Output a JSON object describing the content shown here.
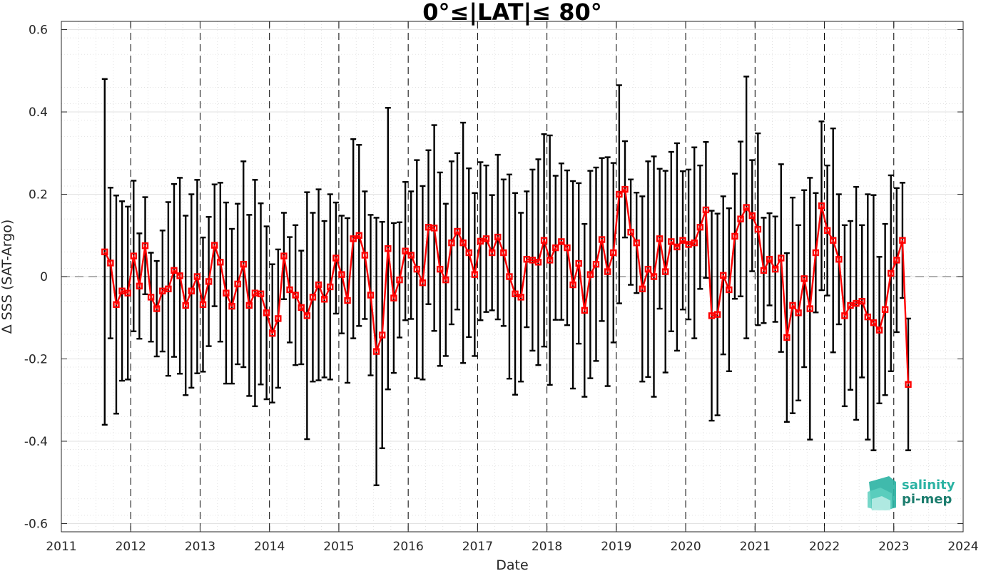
{
  "chart_data": {
    "type": "line",
    "title": "0°≤|LAT|≤ 80°",
    "xlabel": "Date",
    "ylabel": "Δ SSS (SAT-Argo)",
    "xlim": [
      2011,
      2024
    ],
    "ylim": [
      -0.62,
      0.62
    ],
    "x_ticks": [
      "2011",
      "2012",
      "2013",
      "2014",
      "2015",
      "2016",
      "2017",
      "2018",
      "2019",
      "2020",
      "2021",
      "2022",
      "2023",
      "2024"
    ],
    "y_ticks": [
      "-0.6",
      "-0.4",
      "-0.2",
      "0",
      "0.2",
      "0.4",
      "0.6"
    ],
    "grid": true,
    "zero_line": true,
    "year_dividers": true,
    "series": [
      {
        "error_bars": "±1 std",
        "color": "#ff0000",
        "errorbar_color": "#000000",
        "marker": "square",
        "points": [
          {
            "x": "2011-08",
            "y": 0.06,
            "err": 0.42
          },
          {
            "x": "2011-09",
            "y": 0.033,
            "err": 0.183
          },
          {
            "x": "2011-10",
            "y": -0.068,
            "err": 0.265
          },
          {
            "x": "2011-11",
            "y": -0.035,
            "err": 0.218
          },
          {
            "x": "2011-12",
            "y": -0.04,
            "err": 0.21
          },
          {
            "x": "2012-01",
            "y": 0.05,
            "err": 0.183
          },
          {
            "x": "2012-02",
            "y": -0.023,
            "err": 0.128
          },
          {
            "x": "2012-03",
            "y": 0.075,
            "err": 0.118
          },
          {
            "x": "2012-04",
            "y": -0.05,
            "err": 0.108
          },
          {
            "x": "2012-05",
            "y": -0.078,
            "err": 0.116
          },
          {
            "x": "2012-06",
            "y": -0.035,
            "err": 0.147
          },
          {
            "x": "2012-07",
            "y": -0.03,
            "err": 0.211
          },
          {
            "x": "2012-08",
            "y": 0.015,
            "err": 0.21
          },
          {
            "x": "2012-09",
            "y": 0.002,
            "err": 0.238
          },
          {
            "x": "2012-10",
            "y": -0.07,
            "err": 0.218
          },
          {
            "x": "2012-11",
            "y": -0.035,
            "err": 0.235
          },
          {
            "x": "2012-12",
            "y": 0.0,
            "err": 0.235
          },
          {
            "x": "2013-01",
            "y": -0.068,
            "err": 0.163
          },
          {
            "x": "2013-02",
            "y": -0.012,
            "err": 0.157
          },
          {
            "x": "2013-03",
            "y": 0.076,
            "err": 0.148
          },
          {
            "x": "2013-04",
            "y": 0.035,
            "err": 0.193
          },
          {
            "x": "2013-05",
            "y": -0.04,
            "err": 0.22
          },
          {
            "x": "2013-06",
            "y": -0.072,
            "err": 0.188
          },
          {
            "x": "2013-07",
            "y": -0.018,
            "err": 0.195
          },
          {
            "x": "2013-08",
            "y": 0.03,
            "err": 0.25
          },
          {
            "x": "2013-09",
            "y": -0.07,
            "err": 0.22
          },
          {
            "x": "2013-10",
            "y": -0.04,
            "err": 0.275
          },
          {
            "x": "2013-11",
            "y": -0.042,
            "err": 0.22
          },
          {
            "x": "2013-12",
            "y": -0.088,
            "err": 0.21
          },
          {
            "x": "2014-01",
            "y": -0.138,
            "err": 0.168
          },
          {
            "x": "2014-02",
            "y": -0.102,
            "err": 0.168
          },
          {
            "x": "2014-03",
            "y": 0.05,
            "err": 0.105
          },
          {
            "x": "2014-04",
            "y": -0.032,
            "err": 0.128
          },
          {
            "x": "2014-05",
            "y": -0.045,
            "err": 0.17
          },
          {
            "x": "2014-06",
            "y": -0.075,
            "err": 0.138
          },
          {
            "x": "2014-07",
            "y": -0.095,
            "err": 0.3
          },
          {
            "x": "2014-08",
            "y": -0.05,
            "err": 0.205
          },
          {
            "x": "2014-09",
            "y": -0.02,
            "err": 0.232
          },
          {
            "x": "2014-10",
            "y": -0.055,
            "err": 0.19
          },
          {
            "x": "2014-11",
            "y": -0.025,
            "err": 0.225
          },
          {
            "x": "2014-12",
            "y": 0.045,
            "err": 0.135
          },
          {
            "x": "2015-01",
            "y": 0.005,
            "err": 0.143
          },
          {
            "x": "2015-02",
            "y": -0.058,
            "err": 0.2
          },
          {
            "x": "2015-03",
            "y": 0.092,
            "err": 0.242
          },
          {
            "x": "2015-04",
            "y": 0.1,
            "err": 0.22
          },
          {
            "x": "2015-05",
            "y": 0.052,
            "err": 0.155
          },
          {
            "x": "2015-06",
            "y": -0.045,
            "err": 0.195
          },
          {
            "x": "2015-07",
            "y": -0.182,
            "err": 0.325
          },
          {
            "x": "2015-08",
            "y": -0.142,
            "err": 0.275
          },
          {
            "x": "2015-09",
            "y": 0.068,
            "err": 0.342
          },
          {
            "x": "2015-10",
            "y": -0.052,
            "err": 0.182
          },
          {
            "x": "2015-11",
            "y": -0.008,
            "err": 0.14
          },
          {
            "x": "2015-12",
            "y": 0.062,
            "err": 0.168
          },
          {
            "x": "2016-01",
            "y": 0.052,
            "err": 0.155
          },
          {
            "x": "2016-02",
            "y": 0.018,
            "err": 0.265
          },
          {
            "x": "2016-03",
            "y": -0.015,
            "err": 0.235
          },
          {
            "x": "2016-04",
            "y": 0.12,
            "err": 0.187
          },
          {
            "x": "2016-05",
            "y": 0.118,
            "err": 0.25
          },
          {
            "x": "2016-06",
            "y": 0.018,
            "err": 0.235
          },
          {
            "x": "2016-07",
            "y": -0.008,
            "err": 0.185
          },
          {
            "x": "2016-08",
            "y": 0.082,
            "err": 0.198
          },
          {
            "x": "2016-09",
            "y": 0.11,
            "err": 0.19
          },
          {
            "x": "2016-10",
            "y": 0.082,
            "err": 0.292
          },
          {
            "x": "2016-11",
            "y": 0.058,
            "err": 0.205
          },
          {
            "x": "2016-12",
            "y": 0.005,
            "err": 0.198
          },
          {
            "x": "2017-01",
            "y": 0.086,
            "err": 0.192
          },
          {
            "x": "2017-02",
            "y": 0.092,
            "err": 0.178
          },
          {
            "x": "2017-03",
            "y": 0.058,
            "err": 0.14
          },
          {
            "x": "2017-04",
            "y": 0.096,
            "err": 0.2
          },
          {
            "x": "2017-05",
            "y": 0.058,
            "err": 0.178
          },
          {
            "x": "2017-06",
            "y": 0.0,
            "err": 0.248
          },
          {
            "x": "2017-07",
            "y": -0.042,
            "err": 0.245
          },
          {
            "x": "2017-08",
            "y": -0.05,
            "err": 0.205
          },
          {
            "x": "2017-09",
            "y": 0.042,
            "err": 0.165
          },
          {
            "x": "2017-10",
            "y": 0.04,
            "err": 0.22
          },
          {
            "x": "2017-11",
            "y": 0.035,
            "err": 0.25
          },
          {
            "x": "2017-12",
            "y": 0.088,
            "err": 0.258
          },
          {
            "x": "2018-01",
            "y": 0.04,
            "err": 0.303
          },
          {
            "x": "2018-02",
            "y": 0.07,
            "err": 0.175
          },
          {
            "x": "2018-03",
            "y": 0.085,
            "err": 0.19
          },
          {
            "x": "2018-04",
            "y": 0.07,
            "err": 0.188
          },
          {
            "x": "2018-05",
            "y": -0.02,
            "err": 0.252
          },
          {
            "x": "2018-06",
            "y": 0.032,
            "err": 0.195
          },
          {
            "x": "2018-07",
            "y": -0.082,
            "err": 0.21
          },
          {
            "x": "2018-08",
            "y": 0.005,
            "err": 0.252
          },
          {
            "x": "2018-09",
            "y": 0.03,
            "err": 0.235
          },
          {
            "x": "2018-10",
            "y": 0.09,
            "err": 0.198
          },
          {
            "x": "2018-11",
            "y": 0.012,
            "err": 0.278
          },
          {
            "x": "2018-12",
            "y": 0.058,
            "err": 0.218
          },
          {
            "x": "2019-01",
            "y": 0.2,
            "err": 0.265
          },
          {
            "x": "2019-02",
            "y": 0.212,
            "err": 0.117
          },
          {
            "x": "2019-03",
            "y": 0.108,
            "err": 0.128
          },
          {
            "x": "2019-04",
            "y": 0.082,
            "err": 0.122
          },
          {
            "x": "2019-05",
            "y": -0.03,
            "err": 0.225
          },
          {
            "x": "2019-06",
            "y": 0.018,
            "err": 0.262
          },
          {
            "x": "2019-07",
            "y": 0.0,
            "err": 0.292
          },
          {
            "x": "2019-08",
            "y": 0.092,
            "err": 0.17
          },
          {
            "x": "2019-09",
            "y": 0.012,
            "err": 0.245
          },
          {
            "x": "2019-10",
            "y": 0.085,
            "err": 0.218
          },
          {
            "x": "2019-11",
            "y": 0.072,
            "err": 0.252
          },
          {
            "x": "2019-12",
            "y": 0.088,
            "err": 0.168
          },
          {
            "x": "2020-01",
            "y": 0.078,
            "err": 0.182
          },
          {
            "x": "2020-02",
            "y": 0.082,
            "err": 0.232
          },
          {
            "x": "2020-03",
            "y": 0.12,
            "err": 0.15
          },
          {
            "x": "2020-04",
            "y": 0.162,
            "err": 0.165
          },
          {
            "x": "2020-05",
            "y": -0.095,
            "err": 0.255
          },
          {
            "x": "2020-06",
            "y": -0.092,
            "err": 0.245
          },
          {
            "x": "2020-07",
            "y": 0.003,
            "err": 0.192
          },
          {
            "x": "2020-08",
            "y": -0.032,
            "err": 0.198
          },
          {
            "x": "2020-09",
            "y": 0.098,
            "err": 0.152
          },
          {
            "x": "2020-10",
            "y": 0.14,
            "err": 0.188
          },
          {
            "x": "2020-11",
            "y": 0.168,
            "err": 0.318
          },
          {
            "x": "2020-12",
            "y": 0.148,
            "err": 0.135
          },
          {
            "x": "2021-01",
            "y": 0.115,
            "err": 0.233
          },
          {
            "x": "2021-02",
            "y": 0.015,
            "err": 0.128
          },
          {
            "x": "2021-03",
            "y": 0.042,
            "err": 0.112
          },
          {
            "x": "2021-04",
            "y": 0.018,
            "err": 0.128
          },
          {
            "x": "2021-05",
            "y": 0.045,
            "err": 0.228
          },
          {
            "x": "2021-06",
            "y": -0.148,
            "err": 0.205
          },
          {
            "x": "2021-07",
            "y": -0.07,
            "err": 0.262
          },
          {
            "x": "2021-08",
            "y": -0.088,
            "err": 0.213
          },
          {
            "x": "2021-09",
            "y": -0.005,
            "err": 0.215
          },
          {
            "x": "2021-10",
            "y": -0.078,
            "err": 0.318
          },
          {
            "x": "2021-11",
            "y": 0.058,
            "err": 0.145
          },
          {
            "x": "2021-12",
            "y": 0.172,
            "err": 0.205
          },
          {
            "x": "2022-01",
            "y": 0.112,
            "err": 0.158
          },
          {
            "x": "2022-02",
            "y": 0.088,
            "err": 0.272
          },
          {
            "x": "2022-03",
            "y": 0.042,
            "err": 0.158
          },
          {
            "x": "2022-04",
            "y": -0.095,
            "err": 0.22
          },
          {
            "x": "2022-05",
            "y": -0.07,
            "err": 0.205
          },
          {
            "x": "2022-06",
            "y": -0.065,
            "err": 0.283
          },
          {
            "x": "2022-07",
            "y": -0.06,
            "err": 0.185
          },
          {
            "x": "2022-08",
            "y": -0.098,
            "err": 0.298
          },
          {
            "x": "2022-09",
            "y": -0.112,
            "err": 0.31
          },
          {
            "x": "2022-10",
            "y": -0.13,
            "err": 0.178
          },
          {
            "x": "2022-11",
            "y": -0.08,
            "err": 0.208
          },
          {
            "x": "2022-12",
            "y": 0.008,
            "err": 0.238
          },
          {
            "x": "2023-01",
            "y": 0.04,
            "err": 0.175
          },
          {
            "x": "2023-02",
            "y": 0.088,
            "err": 0.14
          },
          {
            "x": "2023-03",
            "y": -0.262,
            "err": 0.16
          }
        ]
      }
    ]
  },
  "logo": {
    "line1": "salinity",
    "line2": "pi-mep",
    "color1": "#2bb3a3",
    "color2": "#1c7d6e"
  }
}
